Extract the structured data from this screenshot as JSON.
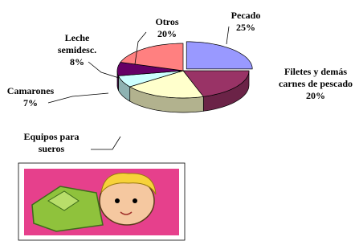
{
  "chart_data": {
    "type": "pie3d",
    "categories": [
      "Pecado",
      "Filetes y demás carnes de pescado",
      "Equipos para sueros",
      "Camarones",
      "Leche semidesc.",
      "Otros"
    ],
    "values": [
      25,
      20,
      20,
      7,
      8,
      20
    ],
    "value_labels": [
      "25%",
      "20%",
      null,
      "7%",
      "8%",
      "20%"
    ],
    "colors": [
      "#9999ff",
      "#993366",
      "#ffffcc",
      "#ccffff",
      "#660066",
      "#ff8080"
    ]
  }
}
